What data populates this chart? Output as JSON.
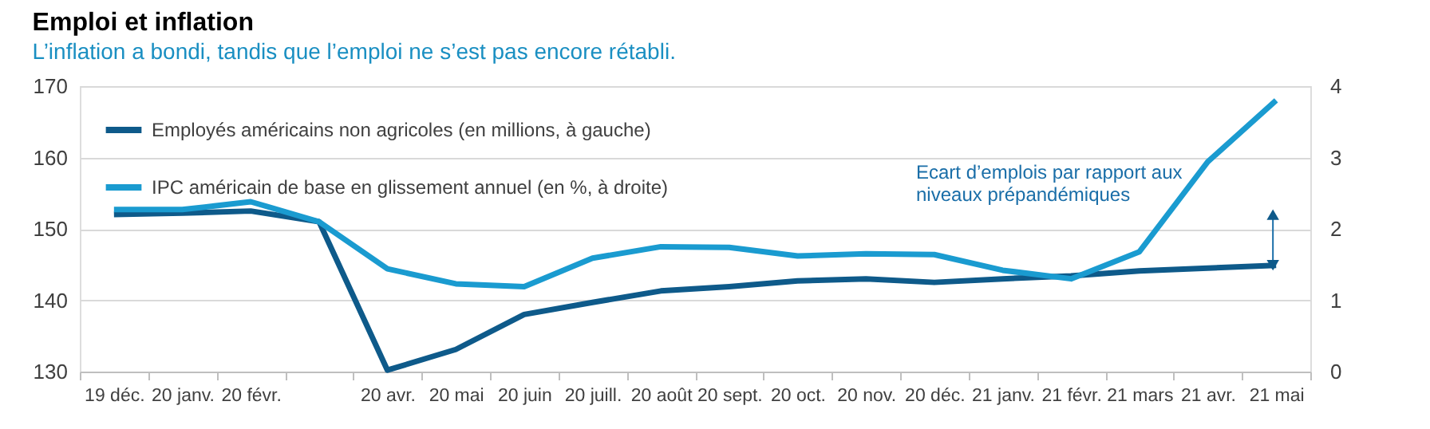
{
  "chart_data": {
    "type": "line",
    "title": "Emploi et inflation",
    "subtitle": "L’inflation a bondi, tandis que l’emploi ne s’est pas encore rétabli.",
    "categories": [
      "19 déc.",
      "20 janv.",
      "20 févr.",
      null,
      "20 avr.",
      "20 mai",
      "20 juin",
      "20 juill.",
      "20 août",
      "20 sept.",
      "20 oct.",
      "20 nov.",
      "20 déc.",
      "21 janv.",
      "21 févr.",
      "21 mars",
      "21 avr.",
      "21 mai"
    ],
    "series": [
      {
        "name": "Employés américains non agricoles (en millions, à gauche)",
        "color": "#0e5a8a",
        "values": [
          152.0,
          152.2,
          152.5,
          151.0,
          130.2,
          133.1,
          138.0,
          139.7,
          141.3,
          141.9,
          142.7,
          143.0,
          142.5,
          143.0,
          143.4,
          144.1,
          144.5,
          144.9
        ]
      },
      {
        "name": "IPC américain de base en glissement annuel (en %, à droite)",
        "color": "#1a9bd0",
        "axis": "y2",
        "values": [
          2.27,
          2.27,
          2.38,
          2.1,
          1.44,
          1.23,
          1.19,
          1.59,
          1.75,
          1.74,
          1.62,
          1.65,
          1.64,
          1.42,
          1.3,
          1.68,
          2.94,
          3.8
        ]
      }
    ],
    "ylim": [
      130,
      170
    ],
    "yticks": [
      130,
      140,
      150,
      160,
      170
    ],
    "y2lim": [
      0,
      4
    ],
    "y2ticks": [
      0,
      1,
      2,
      3,
      4
    ],
    "grid": "y",
    "legend": "top left",
    "marker": "none",
    "line_style": "solid",
    "annotations": [
      "Ecart d’emplois par rapport aux niveaux prépandémiques"
    ]
  }
}
